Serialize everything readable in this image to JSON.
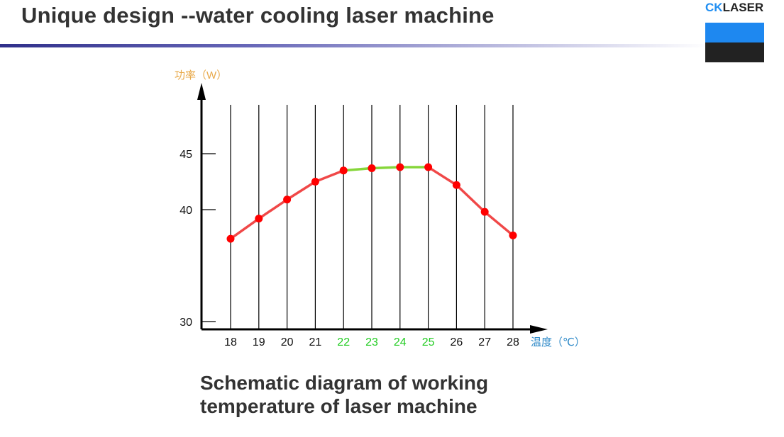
{
  "header": {
    "title": "Unique design --water cooling laser machine",
    "logo_text_accent": "CK",
    "logo_text_rest": "LASER",
    "logo_colors": {
      "accent": "#1e88f0",
      "dark": "#222222"
    }
  },
  "caption": {
    "line1": "Schematic diagram of working",
    "line2": "temperature of laser machine"
  },
  "chart_data": {
    "type": "line",
    "title": "",
    "ylabel": "功率（W）",
    "xlabel": "温度（℃）",
    "x": [
      18,
      19,
      20,
      21,
      22,
      23,
      24,
      25,
      26,
      27,
      28
    ],
    "y": [
      37.4,
      39.2,
      40.9,
      42.5,
      43.5,
      43.7,
      43.8,
      43.8,
      42.2,
      39.8,
      37.7
    ],
    "yticks": [
      30,
      40,
      45
    ],
    "ylim": [
      19.5,
      55
    ],
    "grid": "vertical lines at each x category",
    "colors": {
      "line": "#f04848",
      "optimal_segment": "#86d63a",
      "point": "#ff0000",
      "optimal_tick": "#22cc22",
      "normal_tick": "#111111",
      "ylabel": "#e8a94a",
      "xlabel": "#2f8ac8"
    },
    "optimal_range": [
      22,
      25
    ]
  }
}
